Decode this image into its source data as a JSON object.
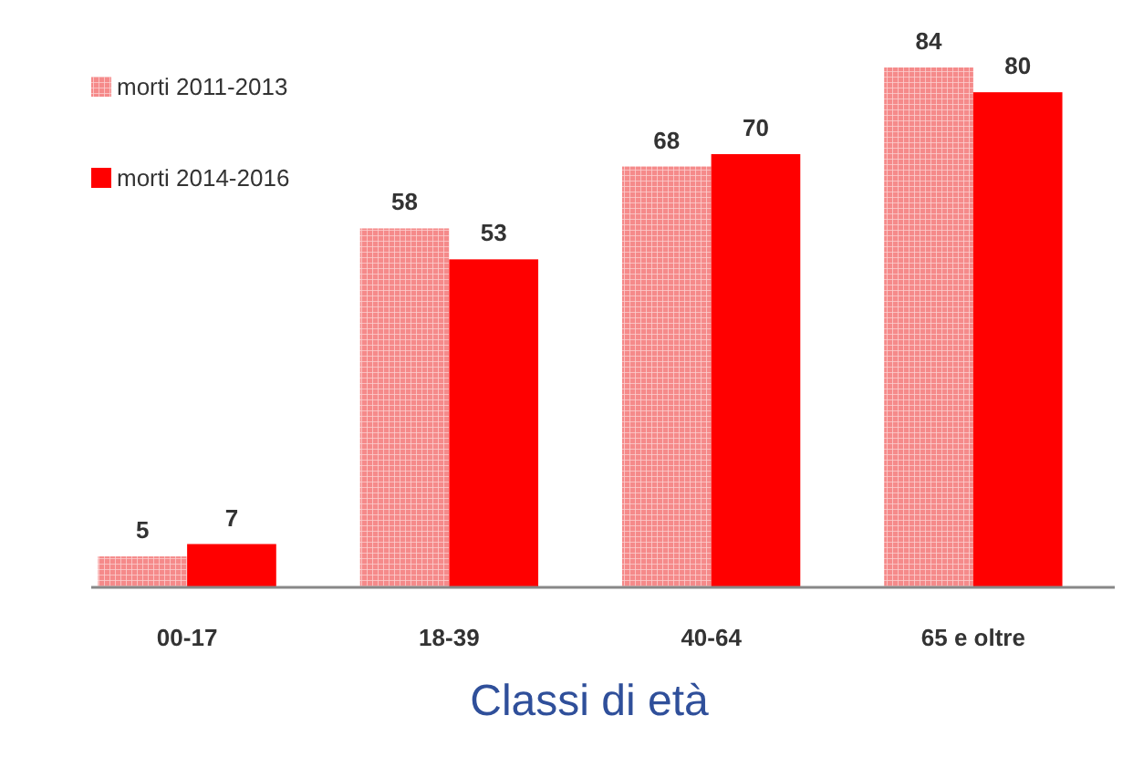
{
  "chart_data": {
    "type": "bar",
    "xlabel": "Classi di età",
    "categories": [
      "00-17",
      "18-39",
      "40-64",
      "65 e oltre"
    ],
    "series": [
      {
        "name": "morti 2011-2013",
        "color": "#f58a8a",
        "values": [
          5,
          58,
          68,
          84
        ]
      },
      {
        "name": "morti 2014-2016",
        "color": "#ff0000",
        "values": [
          7,
          53,
          70,
          80
        ]
      }
    ],
    "data_labels": true,
    "legend": "top left"
  }
}
